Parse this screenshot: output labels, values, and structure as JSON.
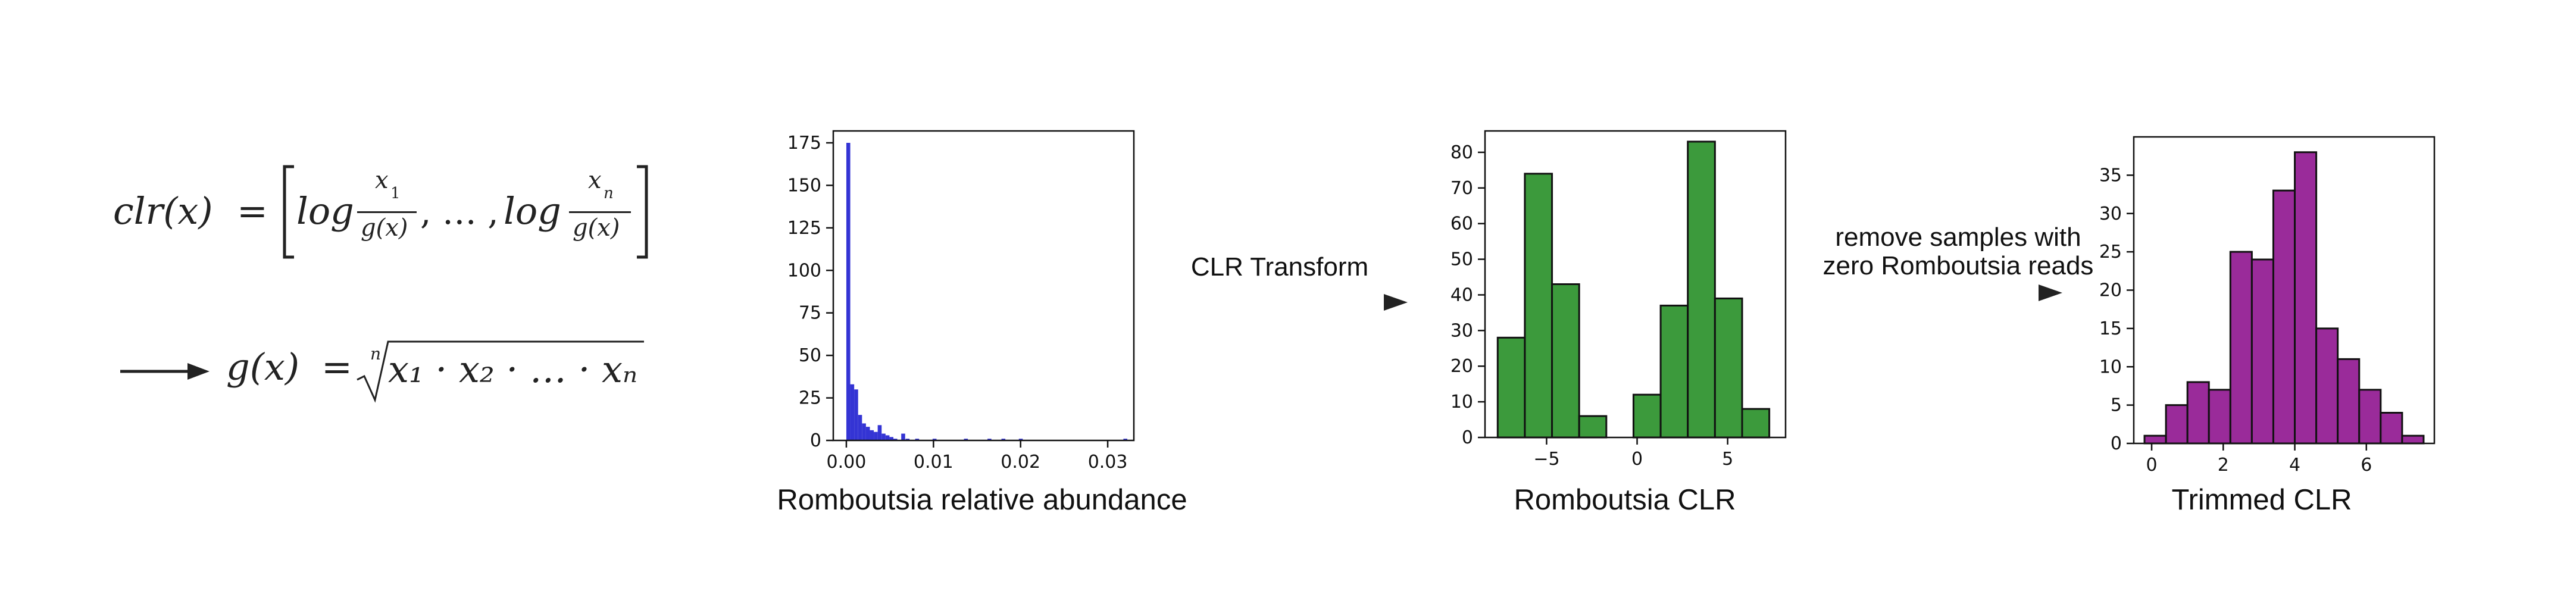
{
  "formula": {
    "clr_lhs": "clr(x)",
    "equals": "=",
    "log1": "log",
    "x1_num": "x",
    "x1_sub": "1",
    "den": "g(x)",
    "ellipsis": ", … ,",
    "log2": "log",
    "xn_num": "x",
    "xn_sub": "n",
    "g_lhs": "g(x)",
    "root_index": "n",
    "product": "x₁ · x₂ ·  …   · xₙ"
  },
  "arrows": {
    "clr_transform": "CLR Transform",
    "remove_line1": "remove samples with",
    "remove_line2": "zero Romboutsia reads"
  },
  "colors": {
    "blue": "#3434d4",
    "green": "#3c9a3c",
    "purple": "#9a2b9a"
  },
  "chart_data": [
    {
      "type": "bar",
      "title": "Romboutsia relative abundance",
      "color": "#3434d4",
      "xlim": [
        -0.0015,
        0.033
      ],
      "ylim": [
        0,
        182
      ],
      "xticks": [
        {
          "v": 0.0,
          "label": "0.00"
        },
        {
          "v": 0.01,
          "label": "0.01"
        },
        {
          "v": 0.02,
          "label": "0.02"
        },
        {
          "v": 0.03,
          "label": "0.03"
        }
      ],
      "yticks": [
        {
          "v": 0,
          "label": "0"
        },
        {
          "v": 25,
          "label": "25"
        },
        {
          "v": 50,
          "label": "50"
        },
        {
          "v": 75,
          "label": "75"
        },
        {
          "v": 100,
          "label": "100"
        },
        {
          "v": 125,
          "label": "125"
        },
        {
          "v": 150,
          "label": "150"
        },
        {
          "v": 175,
          "label": "175"
        }
      ],
      "bin_width": 0.00045,
      "bin_starts": [
        0.0,
        0.00045,
        0.0009,
        0.00135,
        0.0018,
        0.00225,
        0.0027,
        0.00315,
        0.0036,
        0.00405,
        0.0045,
        0.00495,
        0.0054,
        0.0063,
        0.0068,
        0.0079,
        0.0099,
        0.0135,
        0.0162,
        0.0178,
        0.0198,
        0.0318
      ],
      "values": [
        175,
        33,
        30,
        15,
        10,
        8,
        6,
        5,
        9,
        4,
        3,
        2,
        1,
        4,
        1,
        1,
        1,
        1,
        1,
        1,
        1,
        1
      ]
    },
    {
      "type": "bar",
      "title": "Romboutsia CLR",
      "color": "#3c9a3c",
      "xlim": [
        -8.4,
        8.2
      ],
      "ylim": [
        0,
        86
      ],
      "xticks": [
        {
          "v": -5,
          "label": "−5"
        },
        {
          "v": 0,
          "label": "0"
        },
        {
          "v": 5,
          "label": "5"
        }
      ],
      "yticks": [
        {
          "v": 0,
          "label": "0"
        },
        {
          "v": 10,
          "label": "10"
        },
        {
          "v": 20,
          "label": "20"
        },
        {
          "v": 30,
          "label": "30"
        },
        {
          "v": 40,
          "label": "40"
        },
        {
          "v": 50,
          "label": "50"
        },
        {
          "v": 60,
          "label": "60"
        },
        {
          "v": 70,
          "label": "70"
        },
        {
          "v": 80,
          "label": "80"
        }
      ],
      "bin_width": 1.5,
      "bin_starts": [
        -7.7,
        -6.2,
        -4.7,
        -3.2,
        -0.2,
        1.3,
        2.8,
        4.3,
        5.8
      ],
      "values": [
        28,
        74,
        43,
        6,
        12,
        37,
        83,
        39,
        8
      ]
    },
    {
      "type": "bar",
      "title": "Trimmed CLR",
      "color": "#9a2b9a",
      "xlim": [
        -0.5,
        7.9
      ],
      "ylim": [
        0,
        40
      ],
      "xticks": [
        {
          "v": 0,
          "label": "0"
        },
        {
          "v": 2,
          "label": "2"
        },
        {
          "v": 4,
          "label": "4"
        },
        {
          "v": 6,
          "label": "6"
        }
      ],
      "yticks": [
        {
          "v": 0,
          "label": "0"
        },
        {
          "v": 5,
          "label": "5"
        },
        {
          "v": 10,
          "label": "10"
        },
        {
          "v": 15,
          "label": "15"
        },
        {
          "v": 20,
          "label": "20"
        },
        {
          "v": 25,
          "label": "25"
        },
        {
          "v": 30,
          "label": "30"
        },
        {
          "v": 35,
          "label": "35"
        }
      ],
      "bin_width": 0.6,
      "bin_starts": [
        -0.2,
        0.4,
        1.0,
        1.6,
        2.2,
        2.8,
        3.4,
        4.0,
        4.6,
        5.2,
        5.8,
        6.4,
        7.0
      ],
      "values": [
        1,
        5,
        8,
        7,
        25,
        24,
        33,
        38,
        15,
        11,
        7,
        4,
        1
      ]
    }
  ]
}
